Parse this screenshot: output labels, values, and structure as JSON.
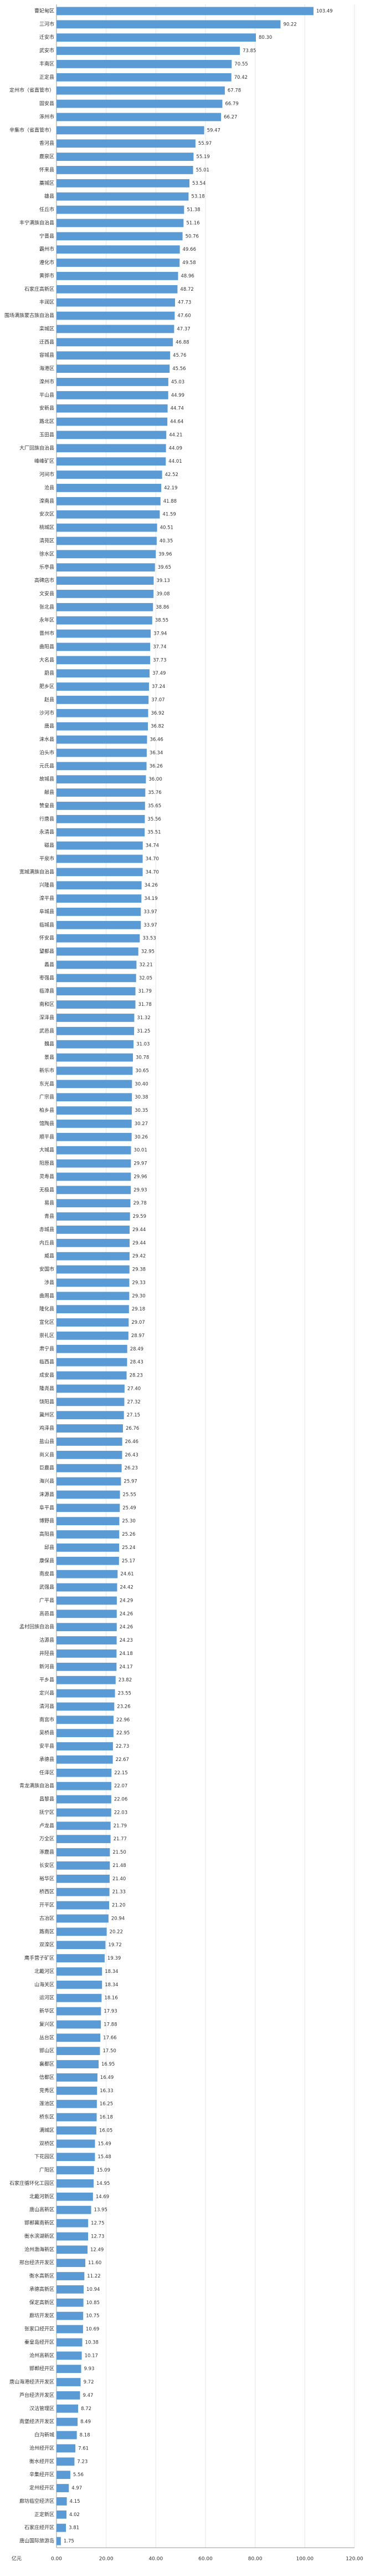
{
  "chart_data": {
    "type": "barh",
    "x_label": "亿元",
    "color": "#5b9bd5",
    "grid": true,
    "xlim": [
      0,
      120
    ],
    "xticks": [
      {
        "value": 0,
        "label": "0.00"
      },
      {
        "value": 20,
        "label": "20.00"
      },
      {
        "value": 40,
        "label": "40.00"
      },
      {
        "value": 60,
        "label": "60.00"
      },
      {
        "value": 80,
        "label": "80.00"
      },
      {
        "value": 100,
        "label": "100.00"
      },
      {
        "value": 120,
        "label": "120.00"
      }
    ],
    "categories": [
      "曹妃甸区",
      "三河市",
      "迁安市",
      "武安市",
      "丰南区",
      "正定县",
      "定州市（省直管市）",
      "固安县",
      "涿州市",
      "辛集市（省直管市）",
      "香河县",
      "鹿泉区",
      "怀来县",
      "藁城区",
      "雄县",
      "任丘市",
      "丰宁满族自治县",
      "宁晋县",
      "霸州市",
      "遵化市",
      "黄骅市",
      "石家庄高新区",
      "丰润区",
      "围场满族蒙古族自治县",
      "栾城区",
      "迁西县",
      "容城县",
      "海港区",
      "滦州市",
      "平山县",
      "安新县",
      "路北区",
      "玉田县",
      "大厂回族自治县",
      "峰峰矿区",
      "河间市",
      "沧县",
      "滦南县",
      "安次区",
      "桃城区",
      "清苑区",
      "徐水区",
      "乐亭县",
      "高碑店市",
      "文安县",
      "张北县",
      "永年区",
      "晋州市",
      "曲阳县",
      "大名县",
      "蔚县",
      "肥乡区",
      "赵县",
      "沙河市",
      "唐县",
      "涞水县",
      "泊头市",
      "元氏县",
      "故城县",
      "献县",
      "赞皇县",
      "行唐县",
      "永清县",
      "磁县",
      "平泉市",
      "宽城满族自治县",
      "兴隆县",
      "滦平县",
      "阜城县",
      "临城县",
      "怀安县",
      "望都县",
      "蠡县",
      "枣强县",
      "临漳县",
      "南和区",
      "深泽县",
      "武邑县",
      "魏县",
      "景县",
      "新乐市",
      "东光县",
      "广宗县",
      "柏乡县",
      "馆陶县",
      "顺平县",
      "大城县",
      "阳原县",
      "灵寿县",
      "无极县",
      "易县",
      "青县",
      "赤城县",
      "内丘县",
      "威县",
      "安国市",
      "涉县",
      "曲周县",
      "隆化县",
      "宣化区",
      "崇礼区",
      "肃宁县",
      "临西县",
      "成安县",
      "隆尧县",
      "饶阳县",
      "冀州区",
      "鸡泽县",
      "盐山县",
      "尚义县",
      "巨鹿县",
      "海兴县",
      "涞源县",
      "阜平县",
      "博野县",
      "高阳县",
      "邱县",
      "康保县",
      "南皮县",
      "武强县",
      "广平县",
      "高邑县",
      "孟村回族自治县",
      "沽源县",
      "井陉县",
      "新河县",
      "平乡县",
      "定兴县",
      "清河县",
      "南宫市",
      "吴桥县",
      "安平县",
      "承德县",
      "任泽区",
      "青龙满族自治县",
      "昌黎县",
      "抚宁区",
      "卢龙县",
      "万全区",
      "涿鹿县",
      "长安区",
      "裕华区",
      "桥西区",
      "开平区",
      "古冶区",
      "路南区",
      "双滦区",
      "鹰手营子矿区",
      "北戴河区",
      "山海关区",
      "运河区",
      "新华区",
      "复兴区",
      "丛台区",
      "邯山区",
      "襄都区",
      "信都区",
      "竞秀区",
      "莲池区",
      "桥东区",
      "满城区",
      "双桥区",
      "下花园区",
      "广阳区",
      "石家庄循环化工园区",
      "北戴河新区",
      "唐山高新区",
      "邯郸冀南新区",
      "衡水滨湖新区",
      "沧州渤海新区",
      "邢台经济开发区",
      "衡水高新区",
      "承德高新区",
      "保定高新区",
      "廊坊开发区",
      "张家口经开区",
      "秦皇岛经开区",
      "沧州高新区",
      "邯郸经开区",
      "唐山海港经济开发区",
      "芦台经济开发区",
      "汉沽管理区",
      "南堡经济开发区",
      "白沟新城",
      "沧州经开区",
      "衡水经开区",
      "辛集经开区",
      "定州经开区",
      "廊坊临空经济区",
      "正定新区",
      "石家庄经开区",
      "唐山国际旅游岛"
    ],
    "values": [
      103.49,
      90.22,
      80.3,
      73.85,
      70.55,
      70.42,
      67.78,
      66.79,
      66.27,
      59.47,
      55.97,
      55.19,
      55.01,
      53.54,
      53.18,
      51.38,
      51.16,
      50.76,
      49.66,
      49.58,
      48.96,
      48.72,
      47.73,
      47.6,
      47.37,
      46.88,
      45.76,
      45.56,
      45.03,
      44.99,
      44.74,
      44.64,
      44.21,
      44.09,
      44.01,
      42.52,
      42.19,
      41.88,
      41.59,
      40.51,
      40.35,
      39.96,
      39.65,
      39.13,
      39.08,
      38.86,
      38.55,
      37.94,
      37.74,
      37.73,
      37.49,
      37.24,
      37.07,
      36.92,
      36.82,
      36.46,
      36.34,
      36.26,
      36,
      35.76,
      35.65,
      35.56,
      35.51,
      34.74,
      34.7,
      34.7,
      34.26,
      34.19,
      33.97,
      33.97,
      33.53,
      32.95,
      32.21,
      32.05,
      31.79,
      31.78,
      31.32,
      31.25,
      31.03,
      30.78,
      30.65,
      30.4,
      30.38,
      30.35,
      30.27,
      30.26,
      30.01,
      29.97,
      29.96,
      29.93,
      29.78,
      29.59,
      29.44,
      29.44,
      29.42,
      29.38,
      29.33,
      29.3,
      29.18,
      29.07,
      28.97,
      28.49,
      28.43,
      28.23,
      27.4,
      27.32,
      27.15,
      26.76,
      26.46,
      26.43,
      26.23,
      25.97,
      25.55,
      25.49,
      25.3,
      25.26,
      25.24,
      25.17,
      24.61,
      24.42,
      24.29,
      24.26,
      24.26,
      24.23,
      24.18,
      24.17,
      23.82,
      23.55,
      23.26,
      22.96,
      22.95,
      22.73,
      22.67,
      22.15,
      22.07,
      22.06,
      22.03,
      21.79,
      21.77,
      21.5,
      21.48,
      21.4,
      21.33,
      21.2,
      20.94,
      20.22,
      19.72,
      19.39,
      18.34,
      18.34,
      18.16,
      17.93,
      17.88,
      17.66,
      17.5,
      16.95,
      16.49,
      16.33,
      16.25,
      16.18,
      16.05,
      15.49,
      15.48,
      15.09,
      14.95,
      14.69,
      13.95,
      12.75,
      12.73,
      12.49,
      11.6,
      11.22,
      10.94,
      10.85,
      10.75,
      10.69,
      10.38,
      10.17,
      9.93,
      9.72,
      9.47,
      8.72,
      8.49,
      8.18,
      7.61,
      7.23,
      5.56,
      4.97,
      4.15,
      4.02,
      3.81,
      1.75
    ],
    "value_labels": [
      "103.49",
      "90.22",
      "80.30",
      "73.85",
      "70.55",
      "70.42",
      "67.78",
      "66.79",
      "66.27",
      "59.47",
      "55.97",
      "55.19",
      "55.01",
      "53.54",
      "53.18",
      "51.38",
      "51.16",
      "50.76",
      "49.66",
      "49.58",
      "48.96",
      "48.72",
      "47.73",
      "47.60",
      "47.37",
      "46.88",
      "45.76",
      "45.56",
      "45.03",
      "44.99",
      "44.74",
      "44.64",
      "44.21",
      "44.09",
      "44.01",
      "42.52",
      "42.19",
      "41.88",
      "41.59",
      "40.51",
      "40.35",
      "39.96",
      "39.65",
      "39.13",
      "39.08",
      "38.86",
      "38.55",
      "37.94",
      "37.74",
      "37.73",
      "37.49",
      "37.24",
      "37.07",
      "36.92",
      "36.82",
      "36.46",
      "36.34",
      "36.26",
      "36.00",
      "35.76",
      "35.65",
      "35.56",
      "35.51",
      "34.74",
      "34.70",
      "34.70",
      "34.26",
      "34.19",
      "33.97",
      "33.97",
      "33.53",
      "32.95",
      "32.21",
      "32.05",
      "31.79",
      "31.78",
      "31.32",
      "31.25",
      "31.03",
      "30.78",
      "30.65",
      "30.40",
      "30.38",
      "30.35",
      "30.27",
      "30.26",
      "30.01",
      "29.97",
      "29.96",
      "29.93",
      "29.78",
      "29.59",
      "29.44",
      "29.44",
      "29.42",
      "29.38",
      "29.33",
      "29.30",
      "29.18",
      "29.07",
      "28.97",
      "28.49",
      "28.43",
      "28.23",
      "27.40",
      "27.32",
      "27.15",
      "26.76",
      "26.46",
      "26.43",
      "26.23",
      "25.97",
      "25.55",
      "25.49",
      "25.30",
      "25.26",
      "25.24",
      "25.17",
      "24.61",
      "24.42",
      "24.29",
      "24.26",
      "24.26",
      "24.23",
      "24.18",
      "24.17",
      "23.82",
      "23.55",
      "23.26",
      "22.96",
      "22.95",
      "22.73",
      "22.67",
      "22.15",
      "22.07",
      "22.06",
      "22.03",
      "21.79",
      "21.77",
      "21.50",
      "21.48",
      "21.40",
      "21.33",
      "21.20",
      "20.94",
      "20.22",
      "19.72",
      "19.39",
      "18.34",
      "18.34",
      "18.16",
      "17.93",
      "17.88",
      "17.66",
      "17.50",
      "16.95",
      "16.49",
      "16.33",
      "16.25",
      "16.18",
      "16.05",
      "15.49",
      "15.48",
      "15.09",
      "14.95",
      "14.69",
      "13.95",
      "12.75",
      "12.73",
      "12.49",
      "11.60",
      "11.22",
      "10.94",
      "10.85",
      "10.75",
      "10.69",
      "10.38",
      "10.17",
      "9.93",
      "9.72",
      "9.47",
      "8.72",
      "8.49",
      "8.18",
      "7.61",
      "7.23",
      "5.56",
      "4.97",
      "4.15",
      "4.02",
      "3.81",
      "1.75"
    ]
  }
}
